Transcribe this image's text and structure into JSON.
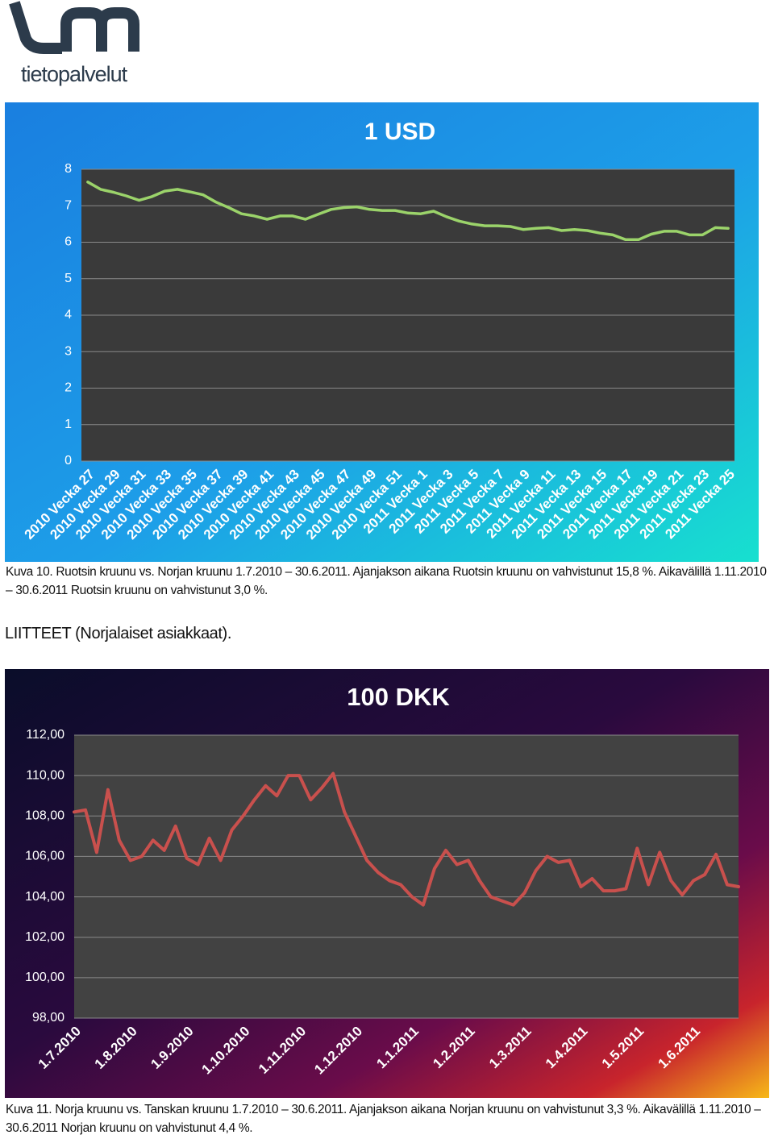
{
  "logo": {
    "text": "tietopalvelut"
  },
  "chart_data": [
    {
      "type": "line",
      "title": "1 USD",
      "categories": [
        "2010 Vecka 27",
        null,
        "2010 Vecka 29",
        null,
        "2010 Vecka 31",
        null,
        "2010 Vecka 33",
        null,
        "2010 Vecka 35",
        null,
        "2010 Vecka 37",
        null,
        "2010 Vecka 39",
        null,
        "2010 Vecka 41",
        null,
        "2010 Vecka 43",
        null,
        "2010 Vecka 45",
        null,
        "2010 Vecka 47",
        null,
        "2010 Vecka 49",
        null,
        "2010 Vecka 51",
        null,
        "2011 Vecka 1",
        null,
        "2011 Vecka 3",
        null,
        "2011 Vecka 5",
        null,
        "2011 Vecka 7",
        null,
        "2011 Vecka 9",
        null,
        "2011 Vecka 11",
        null,
        "2011 Vecka 13",
        null,
        "2011 Vecka 15",
        null,
        "2011 Vecka 17",
        null,
        "2011 Vecka 19",
        null,
        "2011 Vecka 21",
        null,
        "2011 Vecka 23",
        null,
        "2011 Vecka 25"
      ],
      "values": [
        7.65,
        7.45,
        7.37,
        7.27,
        7.15,
        7.25,
        7.4,
        7.45,
        7.38,
        7.3,
        7.1,
        6.95,
        6.78,
        6.72,
        6.63,
        6.72,
        6.72,
        6.63,
        6.77,
        6.9,
        6.95,
        6.97,
        6.9,
        6.87,
        6.87,
        6.8,
        6.78,
        6.85,
        6.7,
        6.58,
        6.5,
        6.45,
        6.45,
        6.43,
        6.35,
        6.38,
        6.4,
        6.32,
        6.35,
        6.32,
        6.25,
        6.2,
        6.07,
        6.07,
        6.22,
        6.3,
        6.3,
        6.2,
        6.2,
        6.4,
        6.38
      ],
      "color": "#9bd36a",
      "ylim": [
        0,
        8
      ],
      "yticks": [
        0,
        1,
        2,
        3,
        4,
        5,
        6,
        7,
        8
      ],
      "grid": true
    },
    {
      "type": "line",
      "title": "100 DKK",
      "categories": [
        "1.7.2010",
        null,
        null,
        null,
        null,
        "1.8.2010",
        null,
        null,
        null,
        null,
        "1.9.2010",
        null,
        null,
        null,
        null,
        "1.10.2010",
        null,
        null,
        null,
        null,
        "1.11.2010",
        null,
        null,
        null,
        null,
        "1.12.2010",
        null,
        null,
        null,
        null,
        "1.1.2011",
        null,
        null,
        null,
        null,
        "1.2.2011",
        null,
        null,
        null,
        null,
        "1.3.2011",
        null,
        null,
        null,
        null,
        "1.4.2011",
        null,
        null,
        null,
        null,
        "1.5.2011",
        null,
        null,
        null,
        null,
        "1.6.2011",
        null,
        null,
        null,
        null
      ],
      "values": [
        108.2,
        108.3,
        106.2,
        109.3,
        106.8,
        105.8,
        106.0,
        106.8,
        106.3,
        107.5,
        105.9,
        105.6,
        106.9,
        105.8,
        107.3,
        108.0,
        108.8,
        109.5,
        109.0,
        110.0,
        110.0,
        108.8,
        109.4,
        110.1,
        108.2,
        107.0,
        105.8,
        105.2,
        104.8,
        104.6,
        104.0,
        103.6,
        105.4,
        106.3,
        105.6,
        105.8,
        104.8,
        104.0,
        103.8,
        103.6,
        104.2,
        105.3,
        106.0,
        105.7,
        105.8,
        104.5,
        104.9,
        104.3,
        104.3,
        104.4,
        106.4,
        104.6,
        106.2,
        104.8,
        104.1,
        104.8,
        105.1,
        106.1,
        104.6,
        104.5
      ],
      "color": "#c9504d",
      "ylim": [
        98,
        112
      ],
      "yticks": [
        {
          "value": 98,
          "label": "98,00"
        },
        {
          "value": 100,
          "label": "100,00"
        },
        {
          "value": 102,
          "label": "102,00"
        },
        {
          "value": 104,
          "label": "104,00"
        },
        {
          "value": 106,
          "label": "106,00"
        },
        {
          "value": 108,
          "label": "108,00"
        },
        {
          "value": 110,
          "label": "110,00"
        },
        {
          "value": 112,
          "label": "112,00"
        }
      ],
      "grid": true
    }
  ],
  "captions": [
    "Kuva 10. Ruotsin kruunu vs. Norjan kruunu 1.7.2010 – 30.6.2011. Ajanjakson aikana Ruotsin kruunu on vahvistunut 15,8 %. Aikavälil­lä 1.11.2010 – 30.6.2011 Ruotsin kruunu on vahvistunut 3,0 %.",
    "Kuva 11. Norja kruunu vs. Tanskan kruunu 1.7.2010 – 30.6.2011. Ajanjakson aikana Norjan kruunu on vahvistunut 3,3 %. Aikavälillä 1.11.2010 – 30.6.2011 Norjan kruunu on vahvistunut 4,4 %."
  ],
  "heading": "LIITTEET (Norjalaiset asiakkaat)."
}
